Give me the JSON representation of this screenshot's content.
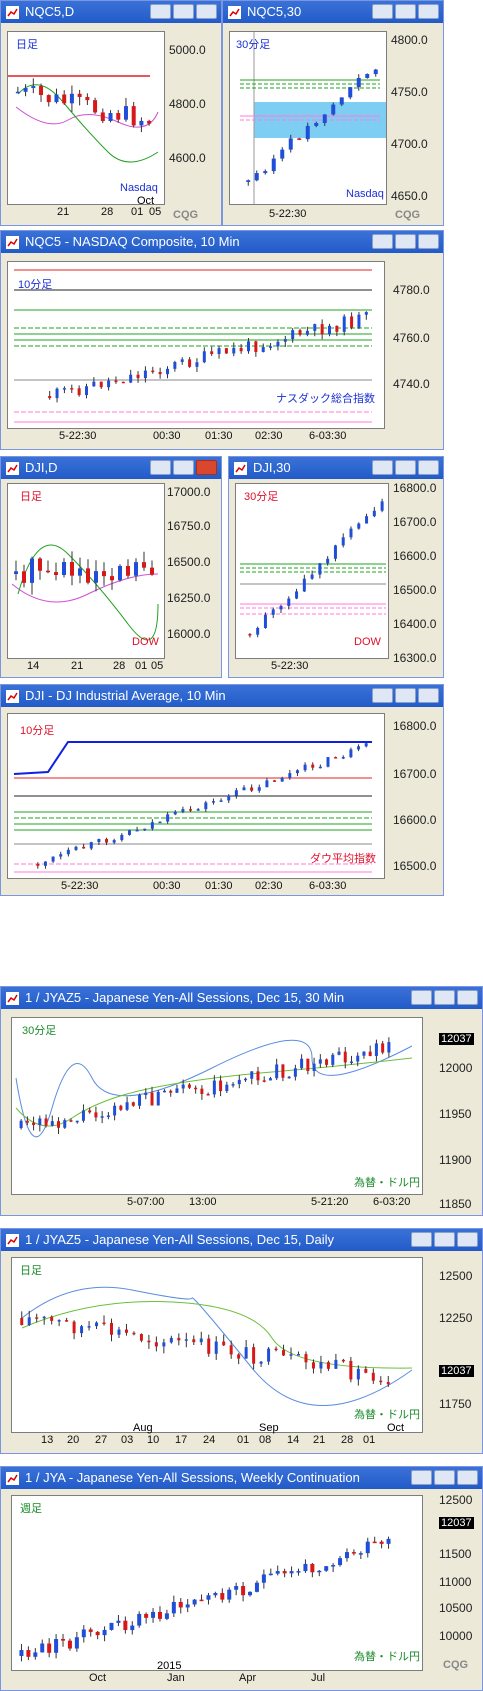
{
  "windows": {
    "nqc5_daily": {
      "title": "NQC5,D",
      "label": "日足",
      "sub": "Nasdaq",
      "ticks": [
        "5000.0",
        "4800.0",
        "4600.0"
      ],
      "xlabels": [
        "21",
        "28",
        "01",
        "05"
      ],
      "month": "Oct"
    },
    "nqc5_30": {
      "title": "NQC5,30",
      "label": "30分足",
      "sub": "Nasdaq",
      "ticks": [
        "4800.0",
        "4750.0",
        "4700.0",
        "4650.0"
      ],
      "xlabels": [
        "5-22:30"
      ]
    },
    "nqc5_10": {
      "title": "NQC5 - NASDAQ Composite, 10 Min",
      "label": "10分足",
      "sub": "ナスダック総合指数",
      "ticks": [
        "4780.0",
        "4760.0",
        "4740.0"
      ],
      "xlabels": [
        "5-22:30",
        "00:30",
        "01:30",
        "02:30",
        "6-03:30"
      ]
    },
    "dji_daily": {
      "title": "DJI,D",
      "label": "日足",
      "sub": "DOW",
      "ticks": [
        "17000.0",
        "16750.0",
        "16500.0",
        "16250.0",
        "16000.0"
      ],
      "xlabels": [
        "14",
        "21",
        "28",
        "01",
        "05"
      ]
    },
    "dji_30": {
      "title": "DJI,30",
      "label": "30分足",
      "sub": "DOW",
      "ticks": [
        "16800.0",
        "16700.0",
        "16600.0",
        "16500.0",
        "16400.0",
        "16300.0"
      ],
      "xlabels": [
        "5-22:30"
      ]
    },
    "dji_10": {
      "title": "DJI - DJ Industrial Average, 10 Min",
      "label": "10分足",
      "sub": "ダウ平均指数",
      "ticks": [
        "16800.0",
        "16700.0",
        "16600.0",
        "16500.0"
      ],
      "xlabels": [
        "5-22:30",
        "00:30",
        "01:30",
        "02:30",
        "6-03:30"
      ]
    },
    "jyaz5_30": {
      "title": "1 / JYAZ5 - Japanese Yen-All Sessions, Dec 15, 30 Min",
      "label": "30分足",
      "sub": "為替・ドル円",
      "last": "12037",
      "ticks": [
        "12000",
        "11950",
        "11900",
        "11850"
      ],
      "xlabels": [
        "5-07:00",
        "13:00",
        "5-21:20",
        "6-03:20"
      ]
    },
    "jyaz5_daily": {
      "title": "1 / JYAZ5 - Japanese Yen-All Sessions, Dec 15, Daily",
      "label": "日足",
      "sub": "為替・ドル円",
      "last": "12037",
      "ticks": [
        "12500",
        "12250",
        "11750"
      ],
      "xlabels": [
        "13",
        "20",
        "27",
        "03",
        "10",
        "17",
        "24",
        "01",
        "08",
        "14",
        "21",
        "28",
        "01"
      ],
      "months": [
        "Aug",
        "Sep",
        "Oct"
      ]
    },
    "jya_weekly": {
      "title": "1 / JYA - Japanese Yen-All Sessions, Weekly Continuation",
      "label": "週足",
      "sub": "為替・ドル円",
      "last": "12037",
      "ticks": [
        "12500",
        "11500",
        "11000",
        "10500",
        "10000"
      ],
      "xlabels": [
        "Oct",
        "Jan",
        "Apr",
        "Jul"
      ],
      "year": "2015"
    }
  },
  "logo": "CQG",
  "colors": {
    "up": "#1f4fd8",
    "down": "#d81818",
    "ma1": "#d05ad0",
    "ma2": "#20a020",
    "ref_red": "#e02020",
    "ref_green": "#20a020",
    "ref_blue": "#1020e0",
    "ref_pink": "#ff7ad8",
    "titlebar": "#2a62d4"
  }
}
